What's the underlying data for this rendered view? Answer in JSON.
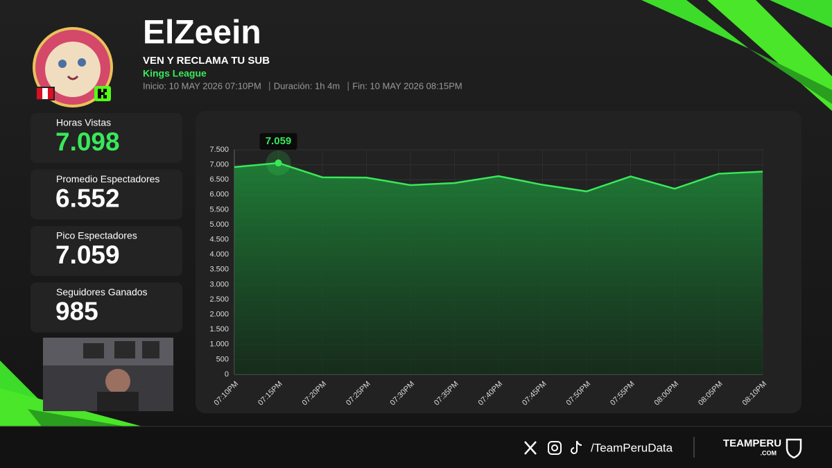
{
  "header": {
    "name": "ElZeein",
    "stream_title": "VEN Y RECLAMA TU SUB",
    "category": "Kings League",
    "info": [
      "Inicio: 10 MAY 2026 07:10PM",
      "Duración: 1h 4m",
      "Fin: 10 MAY 2026 08:15PM"
    ]
  },
  "stats": [
    {
      "label": "Horas Vistas",
      "value": "7.098"
    },
    {
      "label": "Promedio Espectadores",
      "value": "6.552"
    },
    {
      "label": "Pico Espectadores",
      "value": "7.059"
    },
    {
      "label": "Seguidores Ganados",
      "value": "985"
    }
  ],
  "chart_data": {
    "type": "area",
    "categories": [
      "07:10PM",
      "07:15PM",
      "07:20PM",
      "07:25PM",
      "07:30PM",
      "07:35PM",
      "07:40PM",
      "07:45PM",
      "07:50PM",
      "07:55PM",
      "08:00PM",
      "08:05PM",
      "08:10PM"
    ],
    "values": [
      6920,
      7059,
      6580,
      6570,
      6320,
      6390,
      6620,
      6330,
      6110,
      6610,
      6200,
      6700,
      6770
    ],
    "value_labels": [
      null,
      "7.059",
      null,
      null,
      null,
      null,
      null,
      null,
      null,
      null,
      null,
      null,
      null
    ],
    "color": "#39e85a",
    "ylim": [
      0,
      7500
    ],
    "yticks": [
      {
        "value": 0,
        "label": "0"
      },
      {
        "value": 500,
        "label": "500"
      },
      {
        "value": 1000,
        "label": "1.000"
      },
      {
        "value": 1500,
        "label": "1.500"
      },
      {
        "value": 2000,
        "label": "2.000"
      },
      {
        "value": 2500,
        "label": "2.500"
      },
      {
        "value": 3000,
        "label": "3.000"
      },
      {
        "value": 3500,
        "label": "3.500"
      },
      {
        "value": 4000,
        "label": "4.000"
      },
      {
        "value": 4500,
        "label": "4.500"
      },
      {
        "value": 5000,
        "label": "5.000"
      },
      {
        "value": 5500,
        "label": "5.500"
      },
      {
        "value": 6000,
        "label": "6.000"
      },
      {
        "value": 6500,
        "label": "6.500"
      },
      {
        "value": 7000,
        "label": "7.000"
      },
      {
        "value": 7500,
        "label": "7.500"
      }
    ],
    "grid": true
  },
  "footer": {
    "handle": "/TeamPeruData",
    "brand": "TEAMPERU",
    "brand_suffix": ".COM"
  }
}
